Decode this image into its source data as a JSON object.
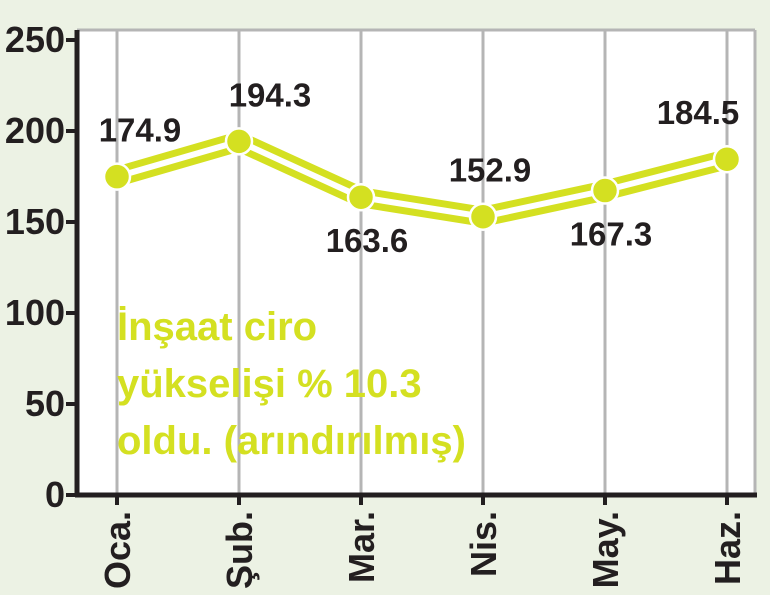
{
  "chart_data": {
    "type": "line",
    "categories": [
      "Oca.",
      "Şub.",
      "Mar.",
      "Nis.",
      "May.",
      "Haz."
    ],
    "values": [
      174.9,
      194.3,
      163.6,
      152.9,
      167.3,
      184.5
    ],
    "data_labels": [
      "174.9",
      "194.3",
      "163.6",
      "152.9",
      "167.3",
      "184.5"
    ],
    "yticks": [
      0,
      50,
      100,
      150,
      200,
      250
    ],
    "ylim": [
      0,
      250
    ],
    "grid": "vertical",
    "annotation": [
      "İnşaat ciro",
      "yükselişi % 10.3",
      "oldu. (arındırılmış)"
    ],
    "colors": {
      "line": "#d4e021",
      "line_core": "#ffffff",
      "grid": "#b5b5b5",
      "axis": "#231f20",
      "plot_bg": "#ffffff",
      "page_bg": "#ecf2e4"
    }
  }
}
